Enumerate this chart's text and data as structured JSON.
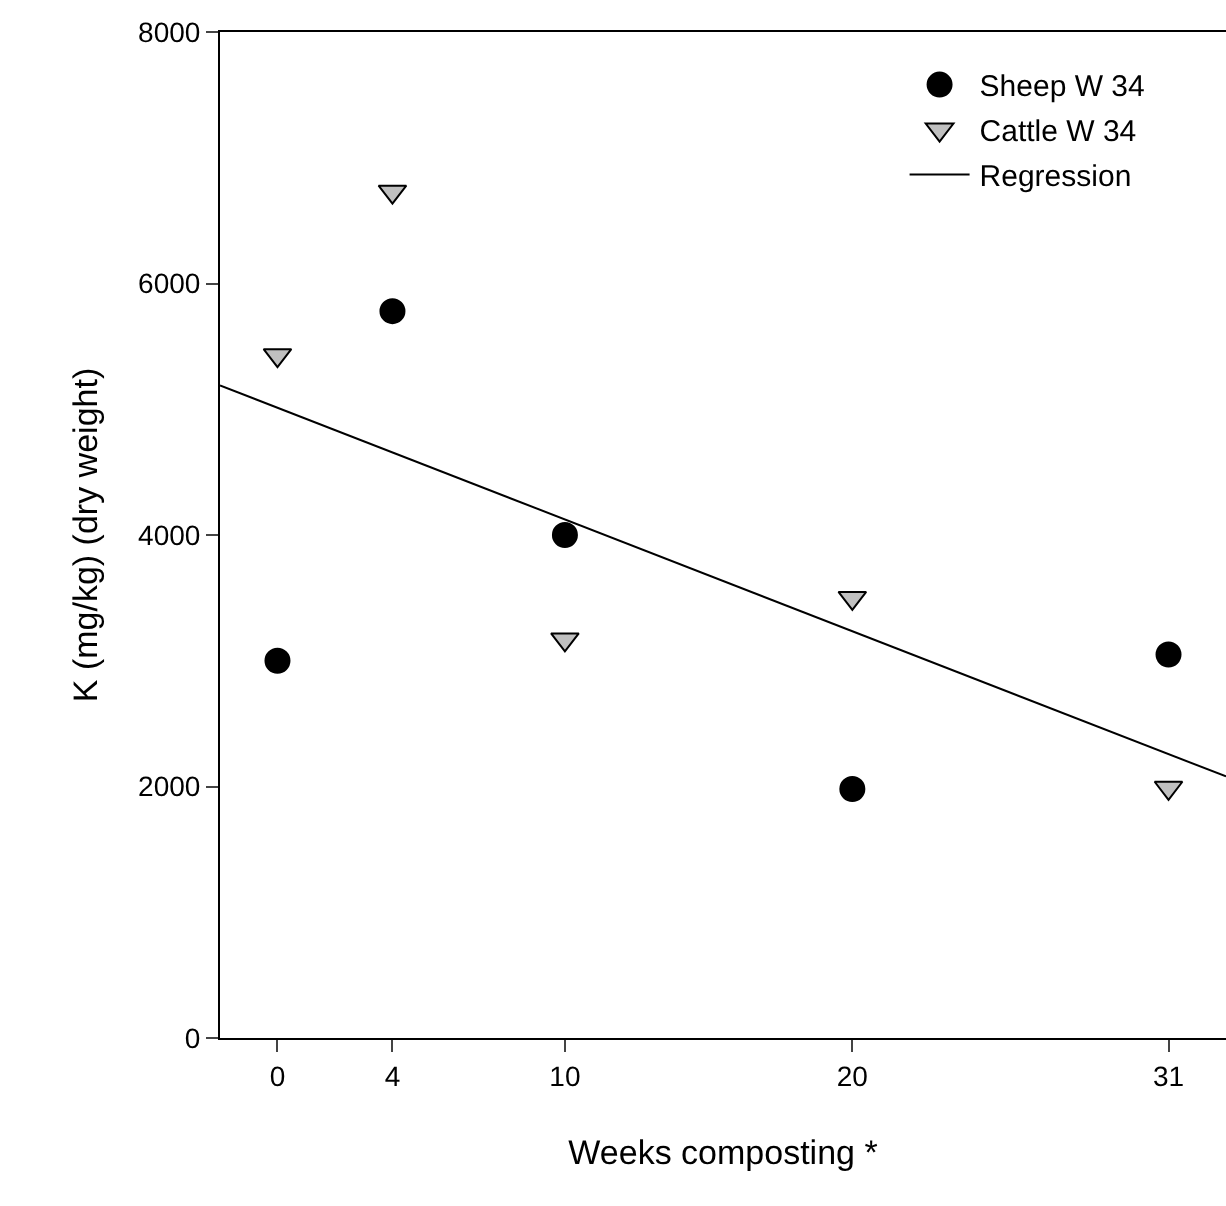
{
  "chart_data": {
    "type": "scatter",
    "xlabel": "Weeks composting *",
    "ylabel": "K (mg/kg) (dry weight)",
    "x": [
      0,
      4,
      10,
      20,
      31
    ],
    "series": [
      {
        "name": "Sheep W 34",
        "color": "#000000",
        "marker": "circle",
        "values": [
          3000,
          5780,
          4000,
          1980,
          3050
        ]
      },
      {
        "name": "Cattle W 34",
        "color": "#c0c0c0",
        "marker": "triangle",
        "values": [
          5430,
          6730,
          3170,
          3500,
          1990
        ]
      },
      {
        "name": "Regression",
        "type": "line",
        "color": "#000000",
        "x": [
          -2,
          33
        ],
        "values": [
          5190,
          2080
        ]
      }
    ],
    "xlim": [
      -2,
      33
    ],
    "xticks": [
      0,
      4,
      10,
      20,
      31
    ],
    "ylim": [
      0,
      8000
    ],
    "yticks": [
      0,
      2000,
      4000,
      6000,
      8000
    ],
    "legend": "top right"
  }
}
